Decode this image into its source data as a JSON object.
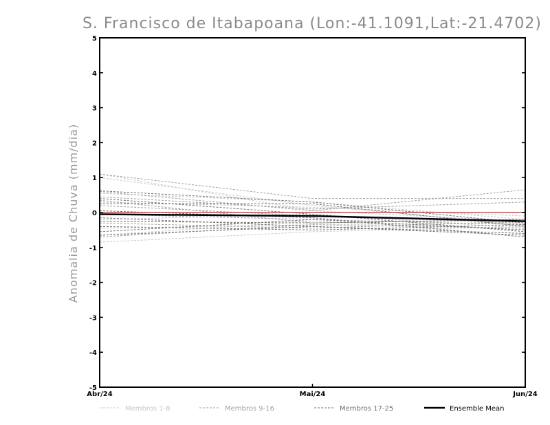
{
  "chart_data": {
    "type": "line",
    "title": "S. Francisco de Itabapoana (Lon:-41.1091,Lat:-21.4702)",
    "ylabel": "Anomalia de Chuva (mm/dia)",
    "xlabel": "",
    "categories": [
      "Abr/24",
      "Mai/24",
      "Jun/24"
    ],
    "ylim": [
      -5,
      5
    ],
    "yticks": [
      -5,
      -4,
      -3,
      -2,
      -1,
      0,
      1,
      2,
      3,
      4,
      5
    ],
    "grid": false,
    "zero_line_color": "#ff3b3b",
    "legend": {
      "placement": "bottom",
      "entries": [
        {
          "label": "Membros 1-8",
          "color": "#c8c8c8",
          "dashed": true
        },
        {
          "label": "Membros 9-16",
          "color": "#a0a0a0",
          "dashed": true
        },
        {
          "label": "Membros 17-25",
          "color": "#707070",
          "dashed": true
        },
        {
          "label": "Ensemble Mean",
          "color": "#000000",
          "dashed": false
        }
      ]
    },
    "series": [
      {
        "group": 0,
        "values": [
          1.1,
          0.05,
          -0.25
        ]
      },
      {
        "group": 0,
        "values": [
          1.0,
          0.2,
          -0.35
        ]
      },
      {
        "group": 0,
        "values": [
          0.55,
          0.3,
          -0.2
        ]
      },
      {
        "group": 0,
        "values": [
          0.3,
          0.15,
          -0.1
        ]
      },
      {
        "group": 0,
        "values": [
          -0.2,
          -0.05,
          -0.45
        ]
      },
      {
        "group": 0,
        "values": [
          -0.45,
          -0.35,
          -0.3
        ]
      },
      {
        "group": 0,
        "values": [
          -0.85,
          -0.55,
          -0.4
        ]
      },
      {
        "group": 0,
        "values": [
          -0.65,
          -0.25,
          -0.5
        ]
      },
      {
        "group": 1,
        "values": [
          1.1,
          0.4,
          0.4
        ]
      },
      {
        "group": 1,
        "values": [
          0.6,
          0.05,
          0.65
        ]
      },
      {
        "group": 1,
        "values": [
          0.45,
          0.1,
          0.3
        ]
      },
      {
        "group": 1,
        "values": [
          0.35,
          -0.3,
          -0.2
        ]
      },
      {
        "group": 1,
        "values": [
          0.2,
          -0.1,
          -0.3
        ]
      },
      {
        "group": 1,
        "values": [
          -0.05,
          -0.2,
          -0.35
        ]
      },
      {
        "group": 1,
        "values": [
          -0.3,
          -0.45,
          -0.25
        ]
      },
      {
        "group": 1,
        "values": [
          -0.7,
          -0.35,
          -0.45
        ]
      },
      {
        "group": 2,
        "values": [
          0.62,
          0.3,
          -0.3
        ]
      },
      {
        "group": 2,
        "values": [
          0.4,
          -0.05,
          -0.55
        ]
      },
      {
        "group": 2,
        "values": [
          0.25,
          0.25,
          -0.4
        ]
      },
      {
        "group": 2,
        "values": [
          0.05,
          -0.15,
          -0.7
        ]
      },
      {
        "group": 2,
        "values": [
          -0.15,
          -0.4,
          -0.6
        ]
      },
      {
        "group": 2,
        "values": [
          -0.25,
          -0.3,
          -0.2
        ]
      },
      {
        "group": 2,
        "values": [
          -0.4,
          -0.5,
          -0.35
        ]
      },
      {
        "group": 2,
        "values": [
          -0.55,
          -0.2,
          -0.5
        ]
      },
      {
        "group": 2,
        "values": [
          -0.65,
          -0.4,
          -0.65
        ]
      }
    ],
    "ensemble_mean": [
      -0.05,
      -0.1,
      -0.25
    ]
  }
}
